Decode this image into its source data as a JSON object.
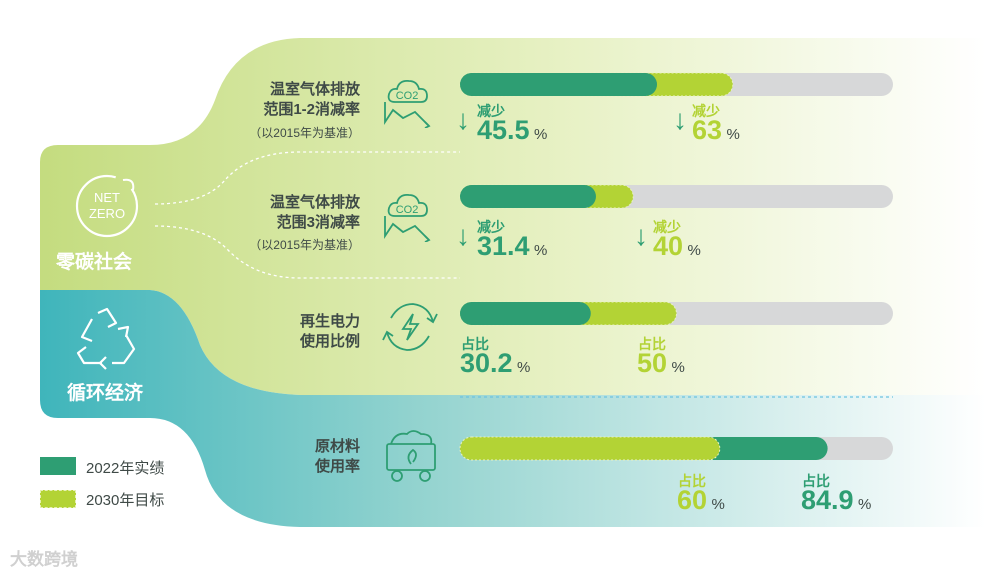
{
  "colors": {
    "actual": "#2e9e73",
    "target": "#b3d335",
    "track": "#d7d8d9",
    "panel_green": "#c9df8a",
    "panel_teal": "#48b8bd"
  },
  "sections": {
    "zero_carbon": "零碳社会",
    "circular": "循环经济",
    "net_zero_line1": "NET",
    "net_zero_line2": "ZERO"
  },
  "rows": [
    {
      "title1": "温室气体排放",
      "title2": "范围1-2消减率",
      "sub": "（以2015年为基准）",
      "icon": "co2-icon",
      "icon_text": "CO2",
      "actual": {
        "label": "减少",
        "value": "45.5",
        "unit": "%"
      },
      "target": {
        "label": "减少",
        "value": "63",
        "unit": "%"
      }
    },
    {
      "title1": "温室气体排放",
      "title2": "范围3消减率",
      "sub": "（以2015年为基准）",
      "icon": "co2-icon",
      "icon_text": "CO2",
      "actual": {
        "label": "减少",
        "value": "31.4",
        "unit": "%"
      },
      "target": {
        "label": "减少",
        "value": "40",
        "unit": "%"
      }
    },
    {
      "title1": "再生电力",
      "title2": "使用比例",
      "sub": "",
      "icon": "renewable-power-icon",
      "actual": {
        "label": "占比",
        "value": "30.2",
        "unit": "%"
      },
      "target": {
        "label": "占比",
        "value": "50",
        "unit": "%"
      }
    },
    {
      "title1": "原材料",
      "title2": "使用率",
      "sub": "",
      "icon": "recycle-cart-icon",
      "actual": {
        "label": "占比",
        "value": "84.9",
        "unit": "%"
      },
      "target": {
        "label": "占比",
        "value": "60",
        "unit": "%"
      }
    }
  ],
  "legend": {
    "actual": "2022年实绩",
    "target": "2030年目标"
  },
  "watermark": "大数跨境",
  "chart_data": {
    "type": "bar",
    "categories": [
      "温室气体排放范围1-2消减率",
      "温室气体排放范围3消减率",
      "再生电力使用比例",
      "原材料使用率"
    ],
    "series": [
      {
        "name": "2022年实绩",
        "values": [
          45.5,
          31.4,
          30.2,
          84.9
        ]
      },
      {
        "name": "2030年目标",
        "values": [
          63,
          40,
          50,
          60
        ]
      }
    ],
    "xlim": [
      0,
      100
    ],
    "unit": "%"
  }
}
